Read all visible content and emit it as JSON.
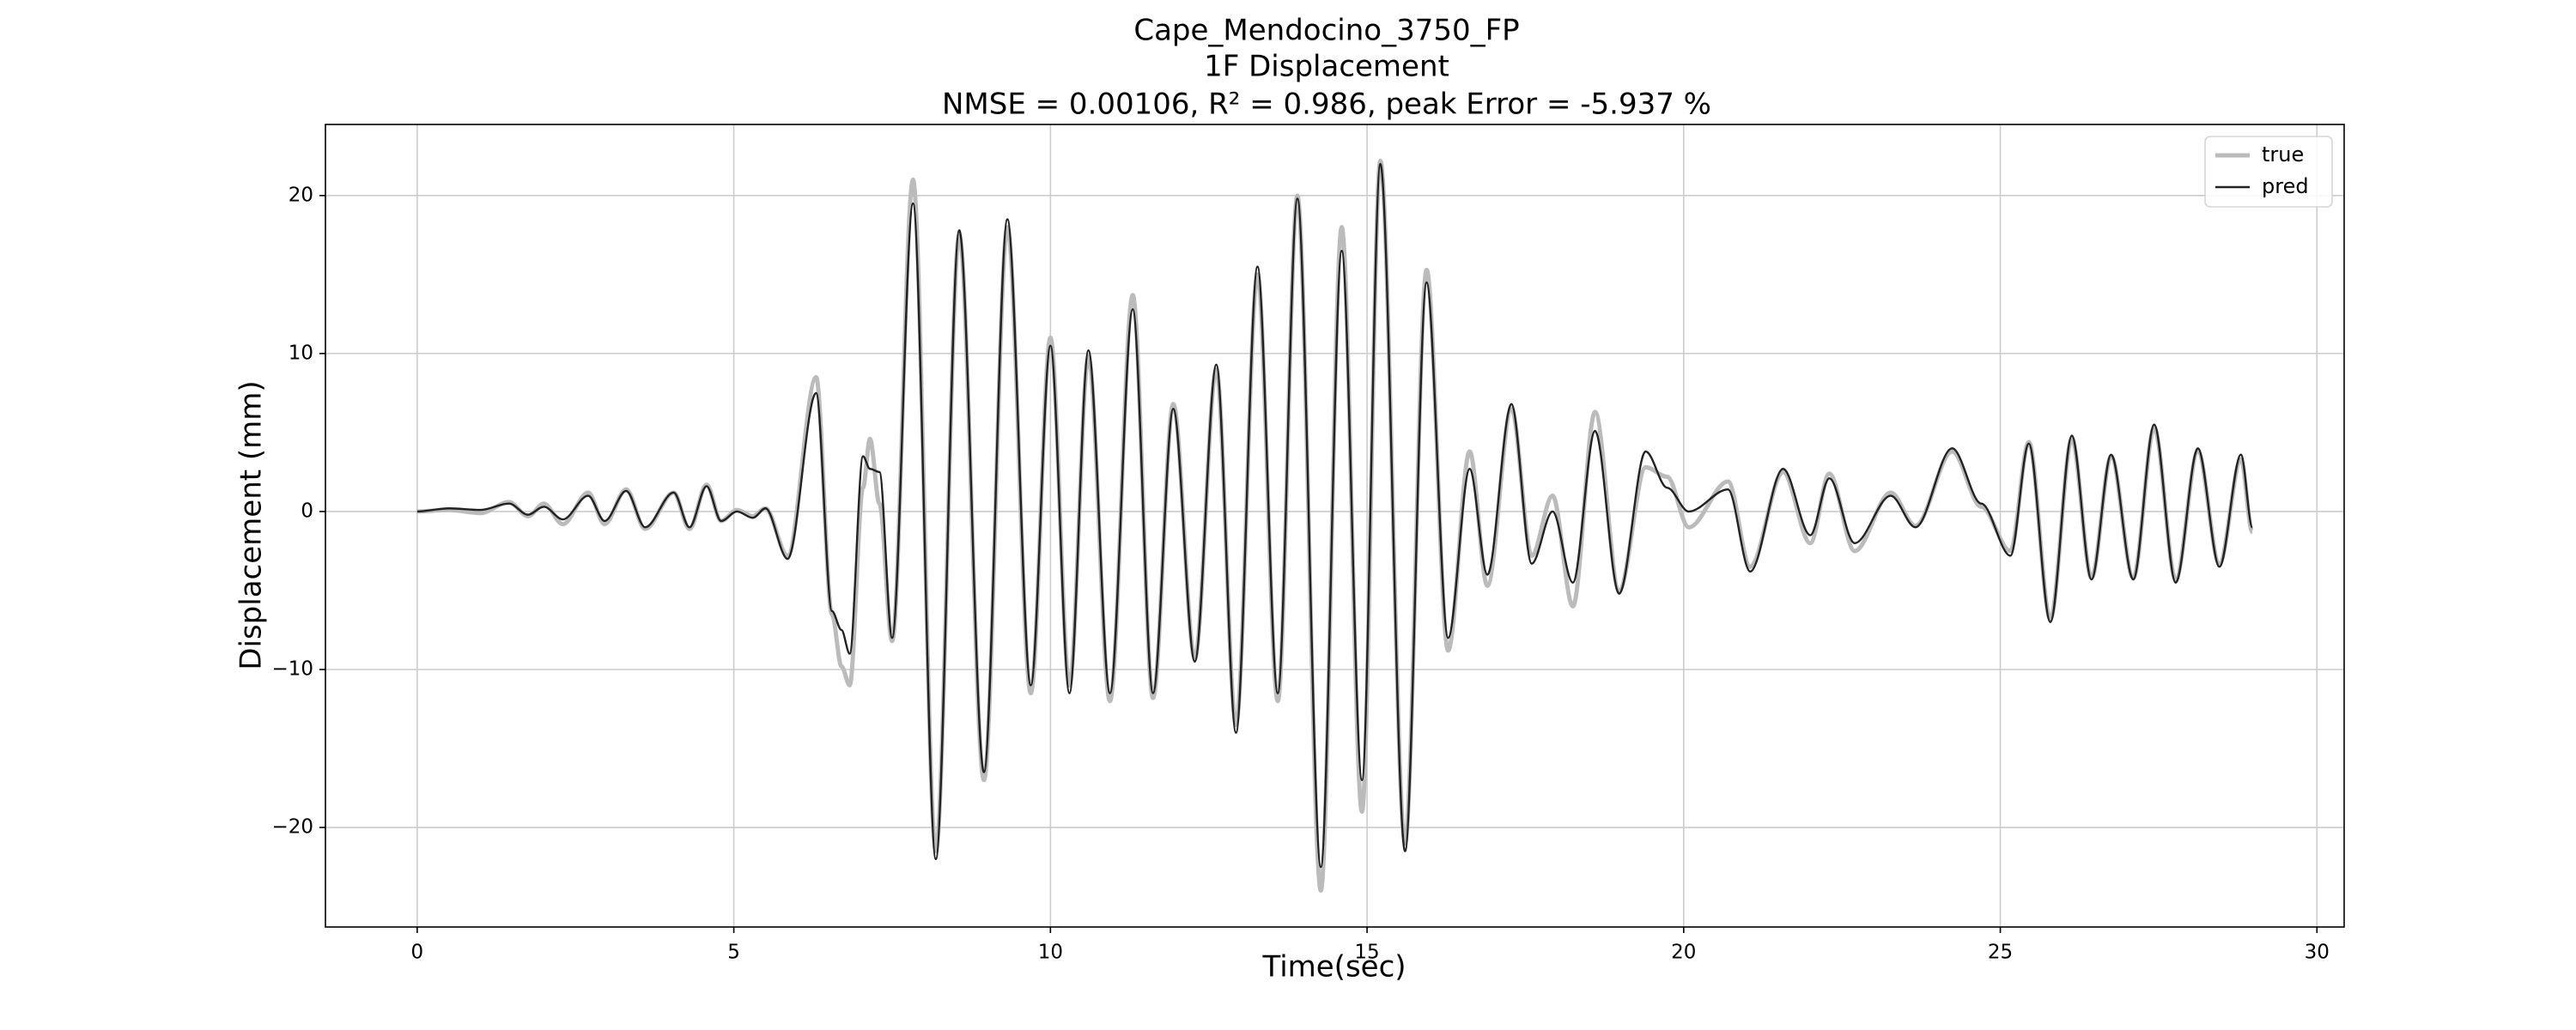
{
  "chart_data": {
    "type": "line",
    "title": [
      "Cape_Mendocino_3750_FP",
      "1F Displacement",
      "NMSE = 0.00106, R² = 0.986, peak Error = -5.937 %"
    ],
    "xlabel": "Time(sec)",
    "ylabel": "Displacement (mm)",
    "x": [
      0,
      0.5,
      1.0,
      1.45,
      1.75,
      2.0,
      2.3,
      2.7,
      2.96,
      3.3,
      3.6,
      4.05,
      4.3,
      4.57,
      4.8,
      5.05,
      5.3,
      5.5,
      5.85,
      6.3,
      6.55,
      6.7,
      6.83,
      7.04,
      7.15,
      7.3,
      7.5,
      7.83,
      8.19,
      8.56,
      8.95,
      9.32,
      9.69,
      10.0,
      10.3,
      10.6,
      10.94,
      11.3,
      11.62,
      11.94,
      12.28,
      12.62,
      12.93,
      13.27,
      13.59,
      13.9,
      14.27,
      14.6,
      14.92,
      15.21,
      15.6,
      15.94,
      16.28,
      16.62,
      16.9,
      17.28,
      17.6,
      17.93,
      18.25,
      18.6,
      18.98,
      19.4,
      19.74,
      20.08,
      20.7,
      21.05,
      21.57,
      22.0,
      22.3,
      22.7,
      23.27,
      23.66,
      24.24,
      24.7,
      25.16,
      25.45,
      25.79,
      26.13,
      26.44,
      26.75,
      27.1,
      27.43,
      27.77,
      28.12,
      28.46,
      28.8,
      28.98
    ],
    "series": [
      {
        "name": "true",
        "color": "#bbbbbb",
        "values": [
          0,
          0.1,
          -0.1,
          0.6,
          -0.3,
          0.5,
          -0.8,
          1.2,
          -0.8,
          1.4,
          -1.1,
          1.2,
          -1.1,
          1.7,
          -0.6,
          0.1,
          -0.3,
          0.2,
          -2.8,
          8.5,
          -6.5,
          -9.8,
          -11.0,
          1.5,
          4.6,
          0.5,
          -8.2,
          21.0,
          -21.5,
          17.5,
          -17.0,
          18.0,
          -11.5,
          11.0,
          -11.0,
          9.8,
          -12.0,
          13.7,
          -11.8,
          6.8,
          -9.3,
          9.0,
          -13.5,
          15.0,
          -12.0,
          20.0,
          -24.0,
          18.0,
          -19.0,
          22.2,
          -21.0,
          15.3,
          -8.8,
          3.8,
          -4.7,
          6.5,
          -2.8,
          1.0,
          -6.0,
          6.3,
          -5.0,
          2.8,
          2.2,
          -1.0,
          1.9,
          -3.5,
          2.5,
          -2.0,
          2.4,
          -2.5,
          1.2,
          -0.9,
          3.8,
          0.3,
          -2.5,
          4.4,
          -6.8,
          4.6,
          -4.2,
          3.5,
          -4.2,
          5.3,
          -4.3,
          3.8,
          -3.3,
          3.3,
          -1.3
        ]
      },
      {
        "name": "pred",
        "color": "#222222",
        "values": [
          0,
          0.2,
          0.1,
          0.5,
          -0.2,
          0.3,
          -0.5,
          1.0,
          -0.6,
          1.3,
          -1.0,
          1.2,
          -1.0,
          1.6,
          -0.6,
          0.0,
          -0.4,
          0.2,
          -3.0,
          7.5,
          -6.3,
          -7.5,
          -9.0,
          3.5,
          2.7,
          2.5,
          -8.0,
          19.5,
          -22.0,
          17.8,
          -16.5,
          18.5,
          -11.0,
          10.5,
          -11.5,
          10.2,
          -11.5,
          12.8,
          -11.5,
          6.5,
          -9.5,
          9.3,
          -14.0,
          15.5,
          -11.5,
          19.8,
          -22.5,
          16.5,
          -17.0,
          22.0,
          -21.5,
          14.5,
          -8.0,
          2.7,
          -4.0,
          6.8,
          -3.3,
          0.0,
          -4.5,
          5.1,
          -5.2,
          3.8,
          1.5,
          0.0,
          1.4,
          -3.8,
          2.7,
          -1.5,
          2.1,
          -2.0,
          1.0,
          -1.0,
          4.0,
          0.5,
          -2.8,
          4.3,
          -7.0,
          4.8,
          -4.3,
          3.6,
          -4.3,
          5.5,
          -4.5,
          4.0,
          -3.5,
          3.6,
          -1.0
        ]
      }
    ],
    "xlim": [
      -1.449,
      30.43
    ],
    "ylim": [
      -26.3,
      24.5
    ],
    "xticks": [
      0,
      5,
      10,
      15,
      20,
      25,
      30
    ],
    "yticks": [
      {
        "value": -20,
        "label": "−20"
      },
      {
        "value": -10,
        "label": "−10"
      },
      0,
      10,
      20
    ],
    "grid": true,
    "legend": "upper right"
  }
}
